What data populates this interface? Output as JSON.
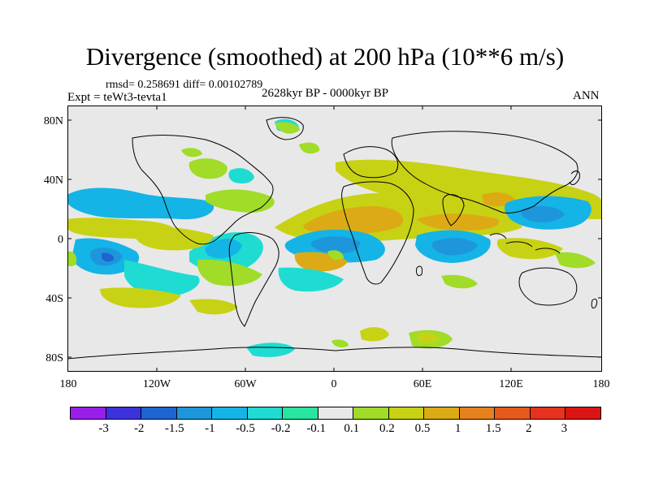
{
  "title": "Divergence (smoothed) at 200 hPa (10**6 m/s)",
  "stats": "rmsd= 0.258691  diff= 0.00102789",
  "period": "2628kyr BP - 0000kyr BP",
  "experiment": "Expt = teWt3-tevta1",
  "season": "ANN",
  "axes": {
    "lat_labels": [
      "80N",
      "40N",
      "0",
      "40S",
      "80S"
    ],
    "lon_labels": [
      "180",
      "120W",
      "60W",
      "0",
      "60E",
      "120E",
      "180"
    ]
  },
  "colorbar": {
    "labels": [
      "-3",
      "-2",
      "-1.5",
      "-1",
      "-0.5",
      "-0.2",
      "-0.1",
      "0.1",
      "0.2",
      "0.5",
      "1",
      "1.5",
      "2",
      "3"
    ],
    "colors": [
      "#9a1eea",
      "#3c32dc",
      "#1e64d2",
      "#1e96dc",
      "#14b4e6",
      "#1edcd2",
      "#28e6a0",
      "#e8e8e8",
      "#a0dc28",
      "#c8d214",
      "#dcaa14",
      "#e6821e",
      "#e65a1e",
      "#e6321e",
      "#dc1414"
    ]
  },
  "map_colors": {
    "background": "#e8e8e8",
    "coast": "#000000"
  }
}
